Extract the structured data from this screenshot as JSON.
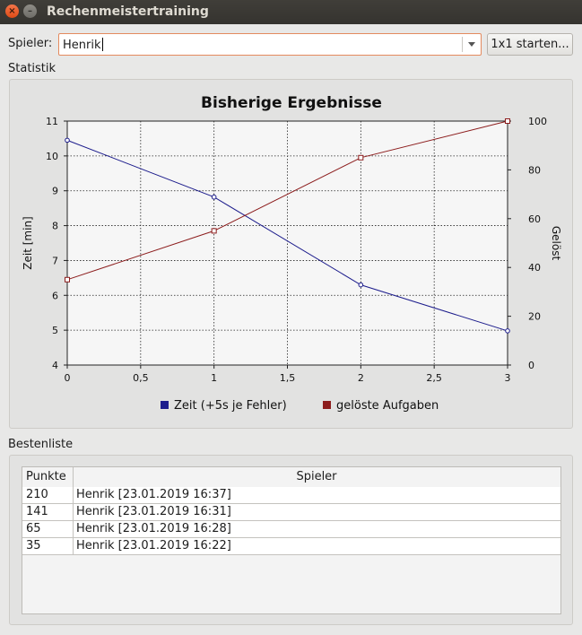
{
  "window": {
    "title": "Rechenmeistertraining"
  },
  "player": {
    "label": "Spieler:",
    "value": "Henrik"
  },
  "start_button": {
    "label": "1x1 starten..."
  },
  "stats_group": {
    "title": "Statistik"
  },
  "best_group": {
    "title": "Bestenliste"
  },
  "chart_data": {
    "type": "line",
    "title": "Bisherige Ergebnisse",
    "x": [
      0,
      1,
      2,
      3
    ],
    "xticks": [
      "0",
      "0,5",
      "1",
      "1,5",
      "2",
      "2,5",
      "3"
    ],
    "xlim": [
      0,
      3
    ],
    "ylabel": "Zeit [min]",
    "ylim": [
      4,
      11
    ],
    "yticks": [
      "4",
      "5",
      "6",
      "7",
      "8",
      "9",
      "10",
      "11"
    ],
    "y2label": "Gelöst",
    "y2lim": [
      0,
      100
    ],
    "y2ticks": [
      "0",
      "20",
      "40",
      "60",
      "80",
      "100"
    ],
    "grid": true,
    "legend_position": "bottom",
    "series": [
      {
        "name": "Zeit (+5s je Fehler)",
        "axis": "left",
        "color": "#1c1c8c",
        "marker": "circle",
        "values": [
          10.45,
          8.82,
          6.3,
          4.98
        ]
      },
      {
        "name": "gelöste Aufgaben",
        "axis": "right",
        "color": "#8c1c1c",
        "marker": "square",
        "values": [
          35,
          55,
          85,
          100
        ]
      }
    ]
  },
  "leaderboard": {
    "columns": [
      "Punkte",
      "Spieler"
    ],
    "rows": [
      [
        "210",
        "Henrik [23.01.2019 16:37]"
      ],
      [
        "141",
        "Henrik [23.01.2019 16:31]"
      ],
      [
        "65",
        "Henrik [23.01.2019 16:28]"
      ],
      [
        "35",
        "Henrik [23.01.2019 16:22]"
      ]
    ]
  }
}
